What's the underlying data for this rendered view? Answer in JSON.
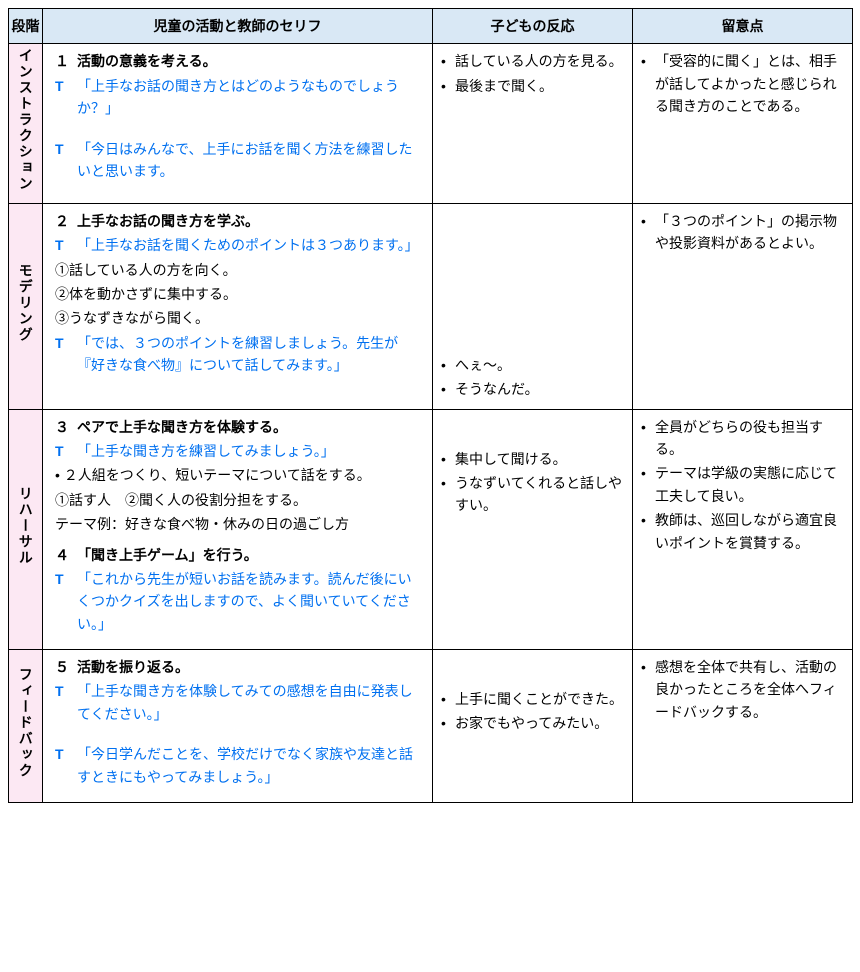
{
  "headers": {
    "stage": "段階",
    "activity": "児童の活動と教師のセリフ",
    "reaction": "子どもの反応",
    "notes": "留意点"
  },
  "rows": [
    {
      "stage": "インストラクション",
      "activities": [
        {
          "num": "１",
          "title": "活動の意義を考える。",
          "lines": [
            {
              "type": "t",
              "text": "「上手なお話の聞き方とはどのようなものでしょうか？」"
            },
            {
              "type": "spacer"
            },
            {
              "type": "t",
              "text": "「今日はみんなで、上手にお話を聞く方法を練習したいと思います。"
            }
          ]
        }
      ],
      "reactions": [
        "話している人の方を見る。",
        "最後まで聞く。"
      ],
      "notes": [
        "「受容的に聞く」とは、相手が話してよかったと感じられる聞き方のことである。"
      ]
    },
    {
      "stage": "モデリング",
      "activities": [
        {
          "num": "２",
          "title": "上手なお話の聞き方を学ぶ。",
          "lines": [
            {
              "type": "t",
              "text": "「上手なお話を聞くためのポイントは３つあります。」"
            },
            {
              "type": "plain",
              "text": "①話している人の方を向く。"
            },
            {
              "type": "plain",
              "text": "②体を動かさずに集中する。"
            },
            {
              "type": "plain",
              "text": "③うなずきながら聞く。"
            },
            {
              "type": "t",
              "text": "「では、３つのポイントを練習しましょう。先生が『好きな食べ物』について話してみます。」"
            }
          ]
        }
      ],
      "reactions": [
        "へぇ～。",
        "そうなんだ。"
      ],
      "reactions_pad_top": true,
      "notes": [
        "「３つのポイント」の掲示物や投影資料があるとよい。"
      ]
    },
    {
      "stage": "リハーサル",
      "activities": [
        {
          "num": "３",
          "title": "ペアで上手な聞き方を体験する。",
          "lines": [
            {
              "type": "t",
              "text": "「上手な聞き方を練習してみましょう。」"
            },
            {
              "type": "plain",
              "text": "• ２人組をつくり、短いテーマについて話をする。"
            },
            {
              "type": "plain",
              "text": "①話す人　②聞く人の役割分担をする。"
            },
            {
              "type": "plain",
              "text": "テーマ例：好きな食べ物・休みの日の過ごし方"
            }
          ]
        },
        {
          "num": "４",
          "title": "「聞き上手ゲーム」を行う。",
          "lines": [
            {
              "type": "t",
              "text": "「これから先生が短いお話を読みます。読んだ後にいくつかクイズを出しますので、よく聞いていてください。」"
            }
          ]
        }
      ],
      "reactions": [
        "集中して聞ける。",
        "うなずいてくれると話しやすい。"
      ],
      "reactions_pad_small": true,
      "notes": [
        "全員がどちらの役も担当する。",
        "テーマは学級の実態に応じて工夫して良い。",
        "教師は、巡回しながら適宜良いポイントを賞賛する。"
      ]
    },
    {
      "stage": "フィードバック",
      "activities": [
        {
          "num": "５",
          "title": "活動を振り返る。",
          "lines": [
            {
              "type": "t",
              "text": "「上手な聞き方を体験してみての感想を自由に発表してください。」"
            },
            {
              "type": "spacer"
            },
            {
              "type": "t",
              "text": "「今日学んだことを、学校だけでなく家族や友達と話すときにもやってみましょう。」"
            }
          ]
        }
      ],
      "reactions": [
        "上手に聞くことができた。",
        "お家でもやってみたい。"
      ],
      "reactions_pad_small": true,
      "notes": [
        "感想を全体で共有し、活動の良かったところを全体へフィードバックする。"
      ]
    }
  ]
}
